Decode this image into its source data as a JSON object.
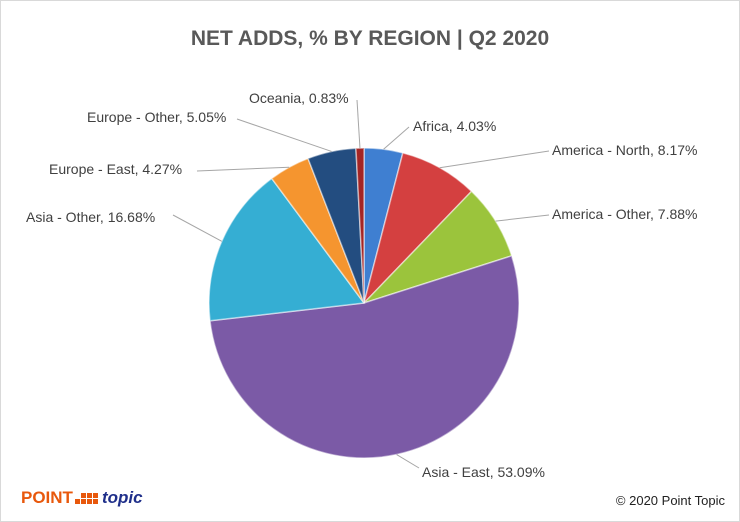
{
  "chart_data": {
    "type": "pie",
    "title": "NET ADDS, % BY REGION | Q2 2020",
    "slices": [
      {
        "label": "Africa",
        "value": 4.03,
        "display": "Africa, 4.03%",
        "color": "#3f7fd1"
      },
      {
        "label": "America - North",
        "value": 8.17,
        "display": "America - North, 8.17%",
        "color": "#d44040"
      },
      {
        "label": "America - Other",
        "value": 7.88,
        "display": "America - Other, 7.88%",
        "color": "#9bc43c"
      },
      {
        "label": "Asia - East",
        "value": 53.09,
        "display": "Asia - East, 53.09%",
        "color": "#7b5aa6"
      },
      {
        "label": "Asia - Other",
        "value": 16.68,
        "display": "Asia - Other, 16.68%",
        "color": "#35aed3"
      },
      {
        "label": "Europe - East",
        "value": 4.27,
        "display": "Europe - East, 4.27%",
        "color": "#f5952f"
      },
      {
        "label": "Europe - Other",
        "value": 5.05,
        "display": "Europe - Other, 5.05%",
        "color": "#234d80"
      },
      {
        "label": "Oceania",
        "value": 0.83,
        "display": "Oceania, 0.83%",
        "color": "#a32525"
      }
    ],
    "legend": "none",
    "data_labels": "outside with leader lines"
  },
  "footer": {
    "logo_text_1": "POINT",
    "logo_text_2": "topic",
    "copyright": "© 2020 Point Topic"
  }
}
